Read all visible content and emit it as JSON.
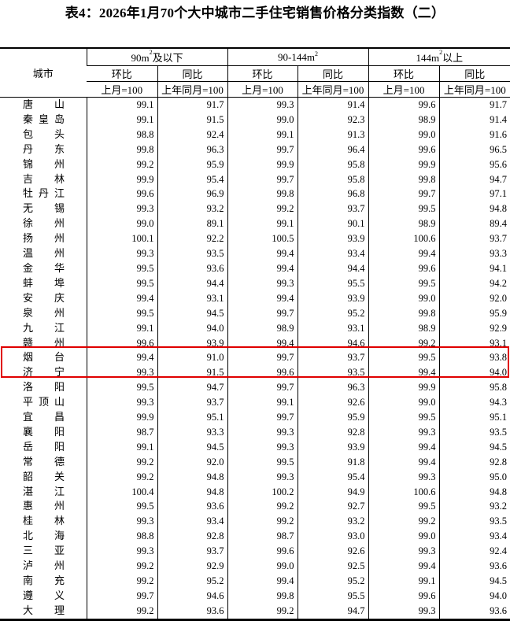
{
  "title": "表4：2026年1月70个大中城市二手住宅销售价格分类指数（二）",
  "header": {
    "city": "城市",
    "groups": [
      {
        "base": "90m",
        "sup": "2",
        "suffix": "及以下"
      },
      {
        "base": "90-144m",
        "sup": "2",
        "suffix": ""
      },
      {
        "base": "144m",
        "sup": "2",
        "suffix": "以上"
      }
    ],
    "mom": "环比",
    "yoy": "同比",
    "mom_base": "上月=100",
    "yoy_base": "上年同月=100"
  },
  "highlight": {
    "cities": [
      "烟台",
      "济宁"
    ],
    "color": "#e00000"
  },
  "rows": [
    [
      "唐山",
      "99.1",
      "91.7",
      "99.3",
      "91.4",
      "99.6",
      "91.7"
    ],
    [
      "秦皇岛",
      "99.1",
      "91.5",
      "99.0",
      "92.3",
      "98.9",
      "91.4"
    ],
    [
      "包头",
      "98.8",
      "92.4",
      "99.1",
      "91.3",
      "99.0",
      "91.6"
    ],
    [
      "丹东",
      "99.8",
      "96.3",
      "99.7",
      "96.4",
      "99.6",
      "96.5"
    ],
    [
      "锦州",
      "99.2",
      "95.9",
      "99.9",
      "95.8",
      "99.9",
      "95.6"
    ],
    [
      "吉林",
      "99.9",
      "95.4",
      "99.7",
      "95.8",
      "99.8",
      "94.7"
    ],
    [
      "牡丹江",
      "99.6",
      "96.9",
      "99.8",
      "96.8",
      "99.7",
      "97.1"
    ],
    [
      "无锡",
      "99.3",
      "93.2",
      "99.2",
      "93.7",
      "99.5",
      "94.8"
    ],
    [
      "徐州",
      "99.0",
      "89.1",
      "99.1",
      "90.1",
      "98.9",
      "89.4"
    ],
    [
      "扬州",
      "100.1",
      "92.2",
      "100.5",
      "93.9",
      "100.6",
      "93.7"
    ],
    [
      "温州",
      "99.3",
      "93.5",
      "99.4",
      "93.4",
      "99.4",
      "93.3"
    ],
    [
      "金华",
      "99.5",
      "93.6",
      "99.4",
      "94.4",
      "99.6",
      "94.1"
    ],
    [
      "蚌埠",
      "99.5",
      "94.4",
      "99.3",
      "95.5",
      "99.5",
      "94.2"
    ],
    [
      "安庆",
      "99.4",
      "93.1",
      "99.4",
      "93.9",
      "99.0",
      "92.0"
    ],
    [
      "泉州",
      "99.5",
      "94.5",
      "99.7",
      "95.2",
      "99.8",
      "95.9"
    ],
    [
      "九江",
      "99.1",
      "94.0",
      "98.9",
      "93.1",
      "98.9",
      "92.9"
    ],
    [
      "赣州",
      "99.6",
      "93.9",
      "99.4",
      "94.6",
      "99.2",
      "93.1"
    ],
    [
      "烟台",
      "99.4",
      "91.0",
      "99.7",
      "93.7",
      "99.5",
      "93.8"
    ],
    [
      "济宁",
      "99.3",
      "91.5",
      "99.6",
      "93.5",
      "99.4",
      "94.0"
    ],
    [
      "洛阳",
      "99.5",
      "94.7",
      "99.7",
      "96.3",
      "99.9",
      "95.8"
    ],
    [
      "平顶山",
      "99.3",
      "93.7",
      "99.1",
      "92.6",
      "99.0",
      "94.3"
    ],
    [
      "宜昌",
      "99.9",
      "95.1",
      "99.7",
      "95.9",
      "99.5",
      "95.1"
    ],
    [
      "襄阳",
      "98.7",
      "93.3",
      "99.3",
      "92.8",
      "99.3",
      "93.5"
    ],
    [
      "岳阳",
      "99.1",
      "94.5",
      "99.3",
      "93.9",
      "99.4",
      "94.5"
    ],
    [
      "常德",
      "99.2",
      "92.0",
      "99.5",
      "91.8",
      "99.4",
      "92.8"
    ],
    [
      "韶关",
      "99.2",
      "94.8",
      "99.3",
      "95.4",
      "99.3",
      "95.0"
    ],
    [
      "湛江",
      "100.4",
      "94.8",
      "100.2",
      "94.9",
      "100.6",
      "94.8"
    ],
    [
      "惠州",
      "99.5",
      "93.6",
      "99.2",
      "92.7",
      "99.5",
      "93.2"
    ],
    [
      "桂林",
      "99.3",
      "93.4",
      "99.2",
      "93.2",
      "99.2",
      "93.5"
    ],
    [
      "北海",
      "98.8",
      "92.8",
      "98.7",
      "93.0",
      "99.0",
      "93.4"
    ],
    [
      "三亚",
      "99.3",
      "93.7",
      "99.6",
      "92.6",
      "99.3",
      "92.4"
    ],
    [
      "泸州",
      "99.2",
      "92.9",
      "99.0",
      "92.5",
      "99.4",
      "93.6"
    ],
    [
      "南充",
      "99.2",
      "95.2",
      "99.4",
      "95.2",
      "99.1",
      "94.5"
    ],
    [
      "遵义",
      "99.7",
      "94.6",
      "99.8",
      "95.5",
      "99.6",
      "94.0"
    ],
    [
      "大理",
      "99.2",
      "93.6",
      "99.2",
      "94.7",
      "99.3",
      "93.6"
    ]
  ]
}
